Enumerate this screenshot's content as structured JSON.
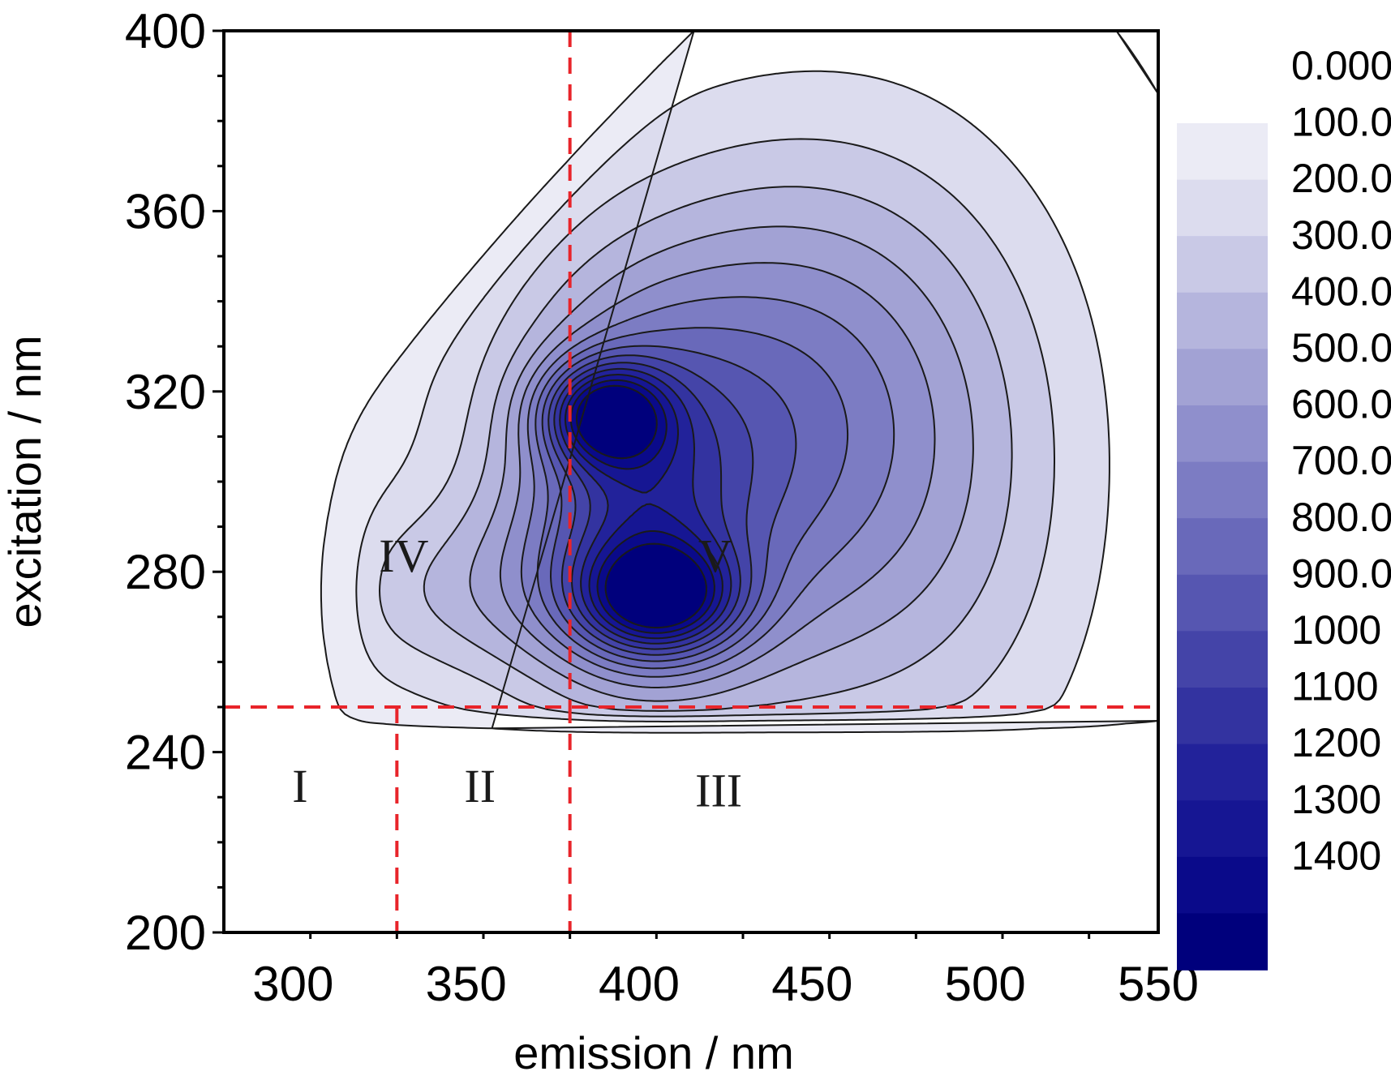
{
  "chart_data": {
    "type": "heatmap",
    "subtype": "excitation-emission contour map",
    "title": "",
    "xlabel": "emission / nm",
    "ylabel": "excitation / nm",
    "xlim": [
      280,
      550
    ],
    "ylim": [
      200,
      400
    ],
    "x_ticks": [
      300,
      350,
      400,
      450,
      500,
      550
    ],
    "y_ticks": [
      200,
      240,
      280,
      320,
      360,
      400
    ],
    "colorbar": {
      "levels": [
        "0.000",
        "100.0",
        "200.0",
        "300.0",
        "400.0",
        "500.0",
        "600.0",
        "700.0",
        "800.0",
        "900.0",
        "1000",
        "1100",
        "1200",
        "1300",
        "1400"
      ],
      "colors": [
        "#ebebf5",
        "#dcdcee",
        "#c9c9e6",
        "#b5b5dd",
        "#a2a2d4",
        "#8f8fcc",
        "#7c7cc3",
        "#6969ba",
        "#5656b1",
        "#4444a8",
        "#3333a0",
        "#22229a",
        "#161693",
        "#0a0a8a",
        "#00007c"
      ],
      "placement": "right"
    },
    "peaks": [
      {
        "emission": 390,
        "excitation": 315,
        "max_level": 1400
      },
      {
        "emission": 405,
        "excitation": 274,
        "max_level": 1400
      }
    ],
    "divider_lines": {
      "excitation": [
        250
      ],
      "emission_lower": [
        330,
        380
      ],
      "emission_full": [
        380
      ]
    },
    "regions": [
      {
        "label": "I",
        "emission": 302,
        "excitation": 229
      },
      {
        "label": "II",
        "emission": 354,
        "excitation": 229
      },
      {
        "label": "III",
        "emission": 423,
        "excitation": 228
      },
      {
        "label": "IV",
        "emission": 332,
        "excitation": 280
      },
      {
        "label": "V",
        "emission": 422,
        "excitation": 280
      }
    ],
    "grid": false,
    "legend": "none"
  }
}
